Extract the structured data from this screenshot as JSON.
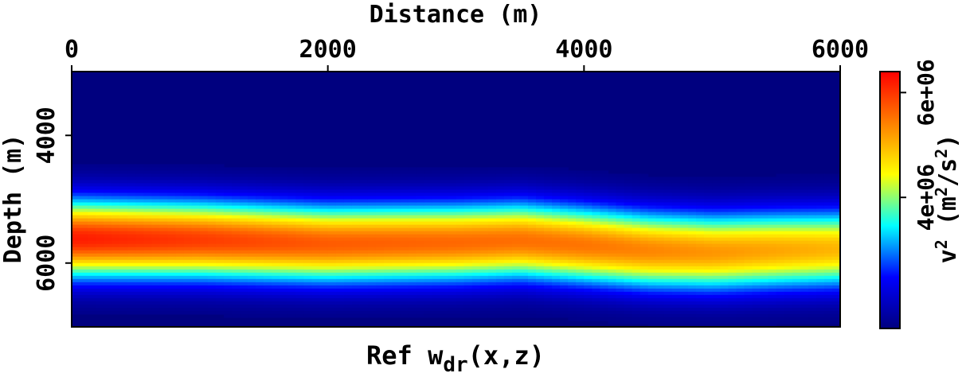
{
  "chart_data": {
    "type": "heatmap",
    "title": "Ref w",
    "title_sub": "dr",
    "title_suffix": "(x,z)",
    "xlabel": "Distance (m)",
    "ylabel": "Depth (m)",
    "xlim": [
      0,
      6000
    ],
    "ylim": [
      3000,
      7000
    ],
    "x_ticks": [
      0,
      2000,
      4000,
      6000
    ],
    "y_ticks": [
      4000,
      6000
    ],
    "colorbar": {
      "label_base": "v",
      "label_exp": "2",
      "label_units": " (m",
      "label_units_exp": "2",
      "label_units_tail": "/s",
      "label_units_exp2": "2",
      "label_close": ")",
      "range": [
        1500000,
        6400000
      ],
      "ticks": [
        4000000,
        6000000
      ],
      "tick_labels": [
        "4e+06",
        "6e+06"
      ],
      "colormap": [
        "#00007f",
        "#0000ff",
        "#00ffff",
        "#ffff00",
        "#ff7f00",
        "#ff0000"
      ]
    },
    "background_value": 1500000,
    "band_center_depth": {
      "x": [
        0,
        1000,
        2000,
        3000,
        3500,
        4000,
        4500,
        5000,
        5500,
        6000
      ],
      "z": [
        5620,
        5640,
        5700,
        5680,
        5650,
        5720,
        5800,
        5830,
        5800,
        5780
      ]
    },
    "band_peak_value": {
      "x": [
        0,
        1000,
        2000,
        3000,
        4000,
        5000,
        6000
      ],
      "v": [
        6200000,
        5950000,
        5700000,
        5600000,
        5500000,
        5250000,
        5000000
      ]
    },
    "band_halfwidth_m": 420
  }
}
